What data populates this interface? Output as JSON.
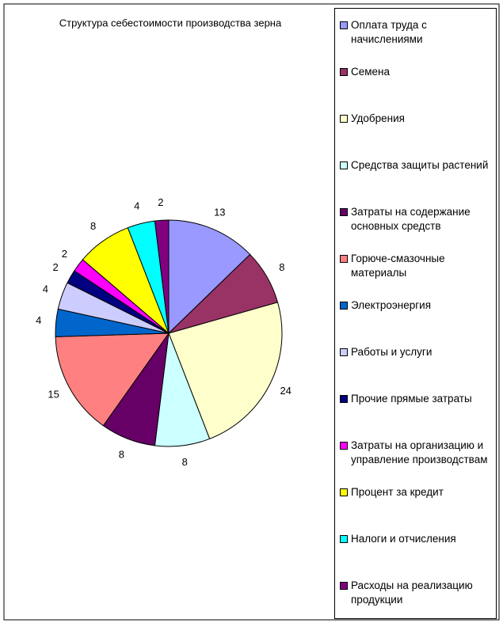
{
  "chart_data": {
    "type": "pie",
    "title": "Структура себестоимости производства зерна",
    "categories": [
      "Оплата труда с начислениями",
      "Семена",
      "Удобрения",
      "Средства защиты растений",
      "Затраты на содержание основных средств",
      "Горюче-смазочные материалы",
      "Электроэнергия",
      "Работы и услуги",
      "Прочие прямые затраты",
      "Затраты на организацию и управление производствам",
      "Процент за кредит",
      "Налоги и отчисления",
      "Расходы на реализацию продукции"
    ],
    "values": [
      13,
      8,
      24,
      8,
      8,
      15,
      4,
      4,
      2,
      2,
      8,
      4,
      2
    ],
    "colors": [
      "#9999ff",
      "#993366",
      "#ffffcc",
      "#ccffff",
      "#660066",
      "#ff8080",
      "#0066cc",
      "#ccccff",
      "#000080",
      "#ff00ff",
      "#ffff00",
      "#00ffff",
      "#800080"
    ],
    "legend": "right"
  }
}
